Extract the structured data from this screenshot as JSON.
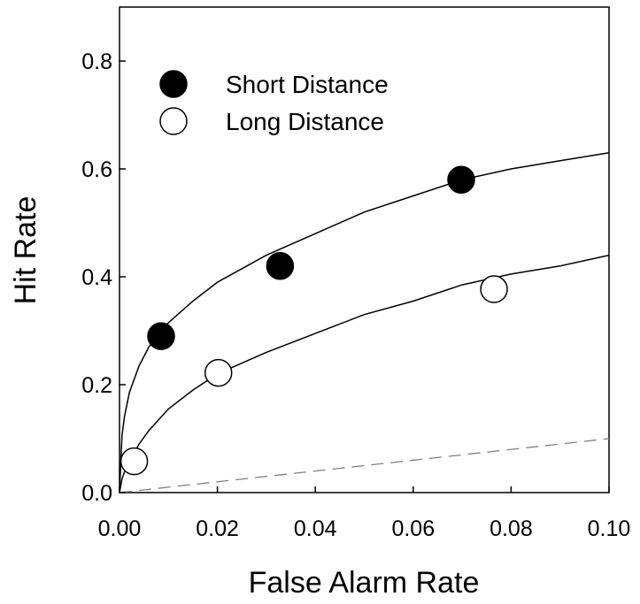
{
  "chart_data": {
    "type": "scatter",
    "xlabel": "False Alarm Rate",
    "ylabel": "Hit Rate",
    "xlim": [
      0,
      0.1
    ],
    "ylim": [
      0,
      0.9
    ],
    "x_ticks": [
      "0.00",
      "0.02",
      "0.04",
      "0.06",
      "0.08",
      "0.10"
    ],
    "y_ticks": [
      "0.0",
      "0.2",
      "0.4",
      "0.6",
      "0.8"
    ],
    "grid": false,
    "legend_position": "top-left",
    "series": [
      {
        "name": "Short Distance",
        "marker": "filled-circle",
        "color": "#000000",
        "points": [
          {
            "x": 0.0085,
            "y": 0.29
          },
          {
            "x": 0.0328,
            "y": 0.42
          },
          {
            "x": 0.0698,
            "y": 0.58
          }
        ],
        "fit_curve": [
          {
            "x": 0.0,
            "y": 0.0
          },
          {
            "x": 0.0005,
            "y": 0.105
          },
          {
            "x": 0.001,
            "y": 0.14
          },
          {
            "x": 0.002,
            "y": 0.185
          },
          {
            "x": 0.004,
            "y": 0.235
          },
          {
            "x": 0.006,
            "y": 0.27
          },
          {
            "x": 0.008,
            "y": 0.295
          },
          {
            "x": 0.01,
            "y": 0.315
          },
          {
            "x": 0.015,
            "y": 0.355
          },
          {
            "x": 0.02,
            "y": 0.39
          },
          {
            "x": 0.03,
            "y": 0.44
          },
          {
            "x": 0.04,
            "y": 0.48
          },
          {
            "x": 0.05,
            "y": 0.52
          },
          {
            "x": 0.06,
            "y": 0.55
          },
          {
            "x": 0.07,
            "y": 0.58
          },
          {
            "x": 0.08,
            "y": 0.6
          },
          {
            "x": 0.09,
            "y": 0.615
          },
          {
            "x": 0.1,
            "y": 0.63
          }
        ]
      },
      {
        "name": "Long Distance",
        "marker": "open-circle",
        "color": "#000000",
        "points": [
          {
            "x": 0.003,
            "y": 0.058
          },
          {
            "x": 0.0202,
            "y": 0.222
          },
          {
            "x": 0.0765,
            "y": 0.377
          }
        ],
        "fit_curve": [
          {
            "x": 0.0,
            "y": 0.0
          },
          {
            "x": 0.0005,
            "y": 0.025
          },
          {
            "x": 0.001,
            "y": 0.038
          },
          {
            "x": 0.002,
            "y": 0.058
          },
          {
            "x": 0.004,
            "y": 0.09
          },
          {
            "x": 0.006,
            "y": 0.115
          },
          {
            "x": 0.008,
            "y": 0.135
          },
          {
            "x": 0.01,
            "y": 0.155
          },
          {
            "x": 0.015,
            "y": 0.19
          },
          {
            "x": 0.02,
            "y": 0.22
          },
          {
            "x": 0.03,
            "y": 0.26
          },
          {
            "x": 0.04,
            "y": 0.295
          },
          {
            "x": 0.05,
            "y": 0.33
          },
          {
            "x": 0.06,
            "y": 0.355
          },
          {
            "x": 0.07,
            "y": 0.385
          },
          {
            "x": 0.08,
            "y": 0.405
          },
          {
            "x": 0.09,
            "y": 0.42
          },
          {
            "x": 0.1,
            "y": 0.44
          }
        ]
      }
    ],
    "reference_line": {
      "style": "dashed",
      "color": "#808080",
      "points": [
        {
          "x": 0.0,
          "y": 0.0
        },
        {
          "x": 0.1,
          "y": 0.1
        }
      ]
    }
  }
}
